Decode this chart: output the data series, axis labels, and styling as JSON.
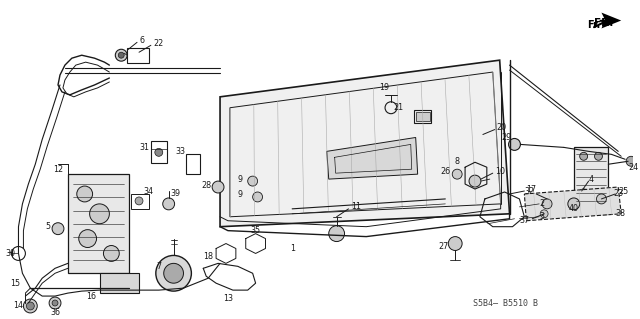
{
  "background_color": "#ffffff",
  "diagram_code": "S5B4– B5510 B",
  "line_color": "#1a1a1a",
  "label_fontsize": 5.8,
  "label_color": "#000000",
  "fig_width": 6.4,
  "fig_height": 3.19,
  "dpi": 100
}
